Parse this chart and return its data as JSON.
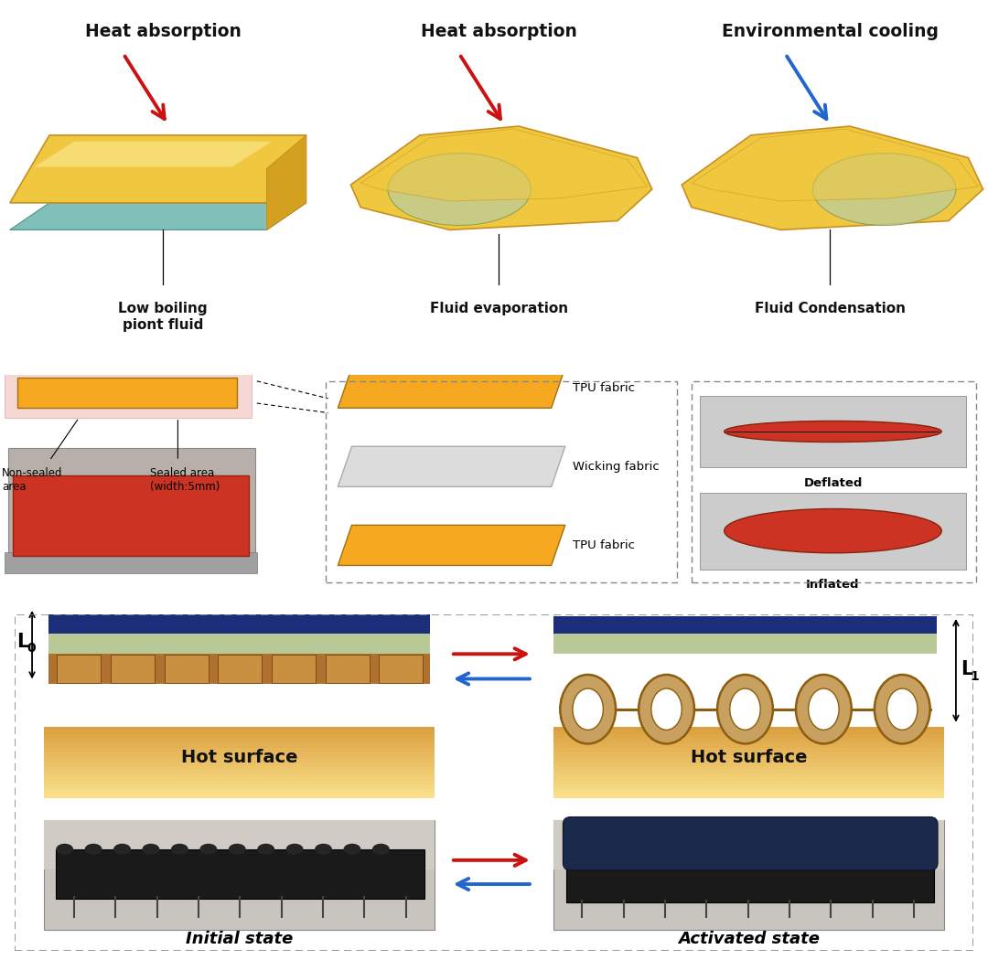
{
  "row1_bg": "#e0e0e0",
  "row2_bg": "#ffffff",
  "row3_bg": "#ffffff",
  "titles": [
    "Heat absorption",
    "Heat absorption",
    "Environmental cooling"
  ],
  "labels": [
    "Low boiling\npiont fluid",
    "Fluid evaporation",
    "Fluid Condensation"
  ],
  "arrow_red": "#CC1111",
  "arrow_blue": "#2266CC",
  "fabric_orange": "#F5A820",
  "fabric_white": "#E8E8E8",
  "tpu_orange": "#F5A820",
  "wicking_grey": "#DCDCDC",
  "hot_surface_top": "#FAE8B0",
  "hot_surface_bot": "#F0B840",
  "blue_layer": "#1C2E7A",
  "green_layer": "#B8C896",
  "brown_layer": "#B07030",
  "ring_fill": "#C8A060",
  "ring_edge": "#8B5E10",
  "text_color": "#111111",
  "dashed_color": "#888888",
  "sheet_yellow": "#F0C840",
  "sheet_edge": "#C89020",
  "sheet_teal": "#80C0B8",
  "sheet_teal_edge": "#509090",
  "green_bubble": "#C0CC90",
  "green_bubble_edge": "#8A9A50"
}
